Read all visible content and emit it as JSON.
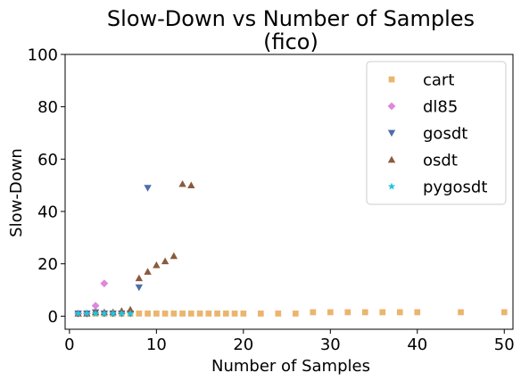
{
  "chart_data": {
    "type": "scatter",
    "title": "Slow-Down vs Number of Samples",
    "subtitle": "(fico)",
    "xlabel": "Number of Samples",
    "ylabel": "Slow-Down",
    "xlim": [
      -0.5,
      51
    ],
    "ylim": [
      -5,
      100
    ],
    "xticks": [
      0,
      10,
      20,
      30,
      40,
      50
    ],
    "yticks": [
      0,
      20,
      40,
      60,
      80,
      100
    ],
    "grid": false,
    "legend": "top-right",
    "series": [
      {
        "name": "cart",
        "marker": "square",
        "color": "#ebb56e",
        "x": [
          1,
          2,
          3,
          4,
          5,
          6,
          7,
          8,
          9,
          10,
          11,
          12,
          13,
          14,
          15,
          16,
          17,
          18,
          19,
          20,
          22,
          24,
          26,
          28,
          30,
          32,
          34,
          36,
          38,
          40,
          45,
          50
        ],
        "y": [
          1,
          1,
          1,
          1,
          1,
          1,
          1,
          1,
          1,
          1,
          1,
          1,
          1,
          1,
          1,
          1,
          1,
          1,
          1,
          1,
          1,
          1,
          1,
          1.5,
          1.5,
          1.5,
          1.5,
          1.5,
          1.5,
          1.5,
          1.5,
          1.5
        ]
      },
      {
        "name": "dl85",
        "marker": "diamond",
        "color": "#dd88dd",
        "x": [
          1,
          2,
          3,
          4
        ],
        "y": [
          1,
          1,
          4,
          12.5
        ]
      },
      {
        "name": "gosdt",
        "marker": "triangle-down",
        "color": "#4c6ea8",
        "x": [
          1,
          2,
          3,
          4,
          5,
          6,
          7,
          8,
          9
        ],
        "y": [
          1,
          1,
          1.5,
          1,
          1,
          1,
          1,
          11,
          49
        ]
      },
      {
        "name": "osdt",
        "marker": "triangle-up",
        "color": "#8b5a3c",
        "x": [
          1,
          2,
          3,
          4,
          5,
          6,
          7,
          8,
          9,
          10,
          11,
          12,
          13,
          14
        ],
        "y": [
          1,
          1,
          1.5,
          1.5,
          1.5,
          2,
          2.5,
          14.5,
          17,
          19.5,
          21,
          23,
          50.5,
          50
        ]
      },
      {
        "name": "pygosdt",
        "marker": "star",
        "color": "#22c5dd",
        "x": [
          1,
          2,
          3,
          4,
          5,
          6,
          7
        ],
        "y": [
          1,
          1,
          1,
          1,
          1,
          1,
          1
        ]
      }
    ]
  }
}
